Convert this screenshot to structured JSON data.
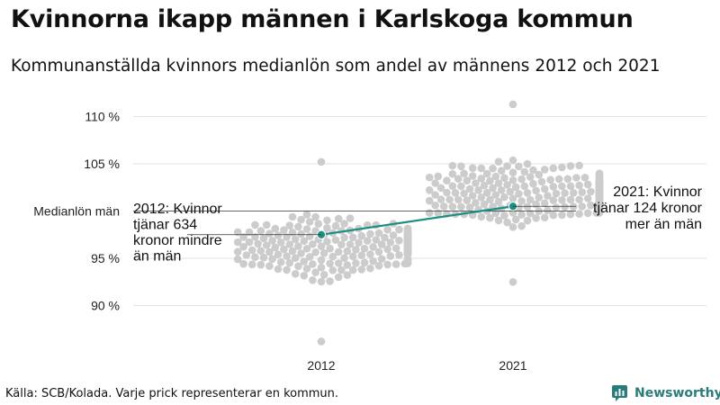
{
  "title": "Kvinnorna ikapp männen i Karlskoga kommun",
  "subtitle": "Kommunanställda kvinnors medianlön som andel av männens 2012 och 2021",
  "source": "Källa: SCB/Kolada. Varje prick representerar en kommun.",
  "brand": "Newsworthy",
  "colors": {
    "dots": "#cccccc",
    "highlight": "#1a8f82",
    "grid": "#e2e2e2",
    "reference": "#333333",
    "brand": "#2a7c7b"
  },
  "chart_data": {
    "type": "scatter",
    "title": "Kvinnorna ikapp männen i Karlskoga kommun",
    "subtitle": "Kommunanställda kvinnors medianlön som andel av männens 2012 och 2021",
    "categories": [
      "2012",
      "2021"
    ],
    "yticks": [
      90,
      95,
      105,
      110
    ],
    "ytick_labels": [
      "90 %",
      "95 %",
      "105 %",
      "110 %"
    ],
    "ylim": [
      86,
      112
    ],
    "reference_line": {
      "y": 100,
      "label": "Medianlön män"
    },
    "grid": true,
    "distribution_ranges": [
      {
        "category": "2012",
        "min": 86.2,
        "max": 105.2,
        "center": 96.2
      },
      {
        "category": "2021",
        "min": 92.5,
        "max": 111.3,
        "center": 101.8
      }
    ],
    "series": [
      {
        "name": "Karlskoga",
        "values": [
          97.5,
          100.5
        ]
      }
    ],
    "annotations": [
      {
        "category": "2012",
        "text_lines": [
          "2012: Kvinnor",
          "tjänar 634",
          "kronor mindre",
          "än män"
        ]
      },
      {
        "category": "2021",
        "text_lines": [
          "2021: Kvinnor",
          "tjänar 124 kronor",
          "mer än män"
        ]
      }
    ]
  }
}
